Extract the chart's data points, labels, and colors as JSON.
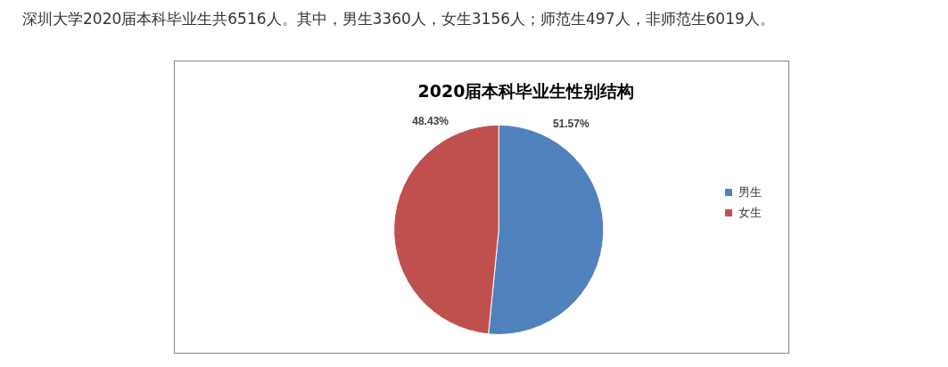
{
  "chart_data": {
    "type": "pie",
    "title": "2020届本科毕业生性别结构",
    "categories": [
      "男生",
      "女生"
    ],
    "values": [
      51.57,
      48.43
    ],
    "colors": [
      "#4f81bd",
      "#c0504d"
    ],
    "value_labels": [
      "51.57%",
      "48.43%"
    ],
    "legend": "right",
    "annotations": [
      "深圳大学2020届本科毕业生共6516人。其中，男生3360人，女生3156人；师范生497人，非师范生6019人。"
    ]
  }
}
